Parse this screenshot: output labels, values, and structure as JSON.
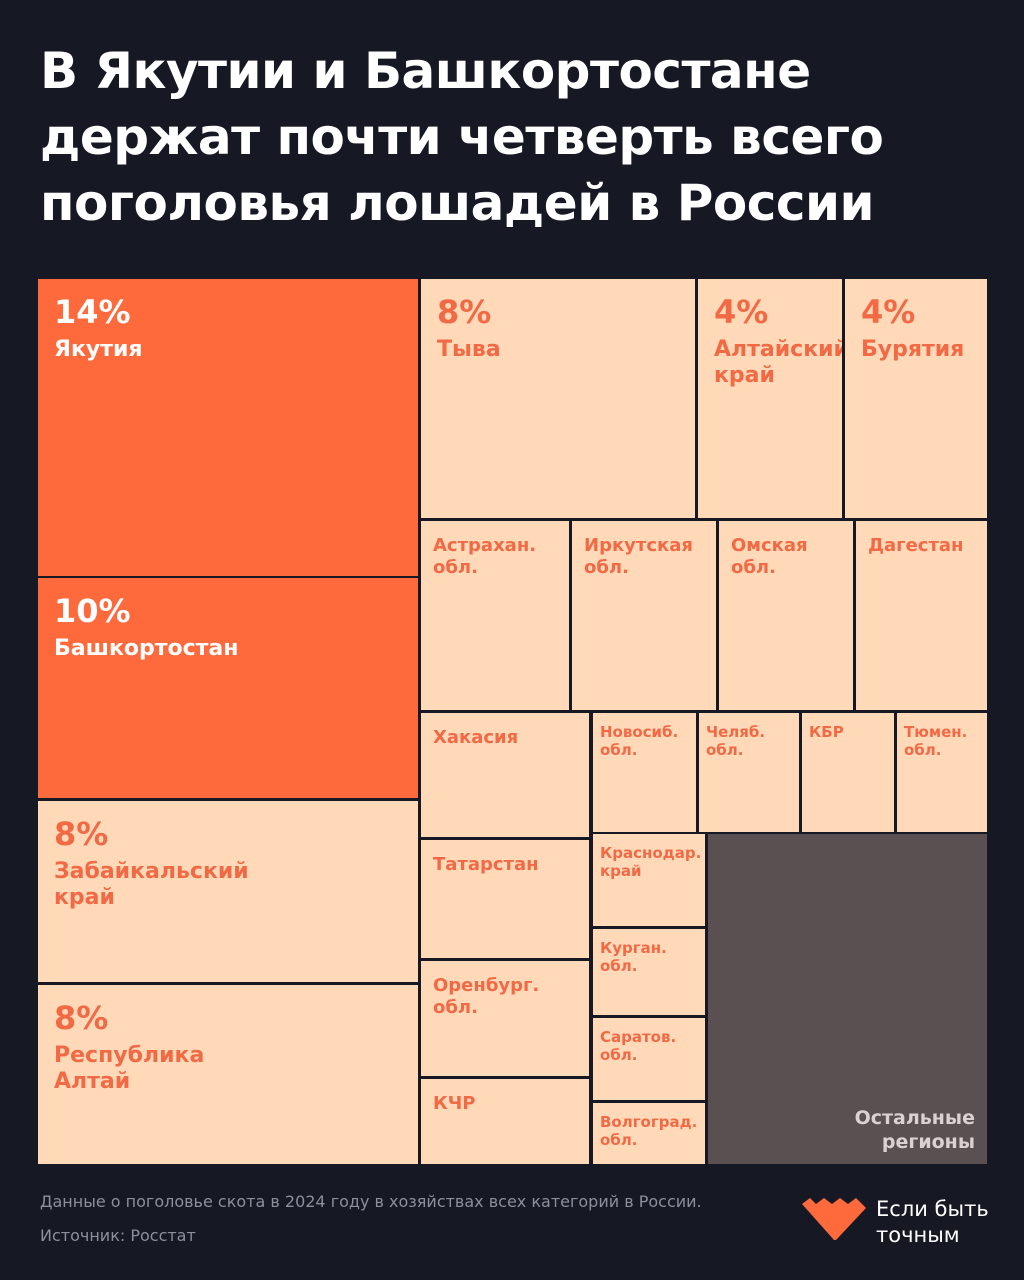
{
  "title": "В Якутии и Башкортостане\nдержат почти четверть всего\nпоголовья лошадей в России",
  "colors": {
    "background": "#161824",
    "highlight": "#ff6a3d",
    "default": "#ffd9b8",
    "label": "#f26a45",
    "rest": "#5b5051",
    "rest_label": "#d9d2d0"
  },
  "chart_data": {
    "type": "treemap",
    "title": "В Якутии и Башкортостане держат почти четверть всего поголовья лошадей в России",
    "regions": [
      {
        "name": "Якутия",
        "value_label": "14%",
        "value": 14,
        "highlight": true
      },
      {
        "name": "Башкортостан",
        "value_label": "10%",
        "value": 10,
        "highlight": true
      },
      {
        "name": "Забайкальский\nкрай",
        "value_label": "8%",
        "value": 8
      },
      {
        "name": "Республика\nАлтай",
        "value_label": "8%",
        "value": 8
      },
      {
        "name": "Тыва",
        "value_label": "8%",
        "value": 8
      },
      {
        "name": "Алтайский\nкрай",
        "value_label": "4%",
        "value": 4
      },
      {
        "name": "Бурятия",
        "value_label": "4%",
        "value": 4
      },
      {
        "name": "Астрахан.\nобл."
      },
      {
        "name": "Иркутская\nобл."
      },
      {
        "name": "Омская\nобл."
      },
      {
        "name": "Дагестан"
      },
      {
        "name": "Хакасия"
      },
      {
        "name": "Татарстан"
      },
      {
        "name": "Оренбург.\nобл."
      },
      {
        "name": "КЧР"
      },
      {
        "name": "Новосиб.\nобл."
      },
      {
        "name": "Челяб.\nобл."
      },
      {
        "name": "КБР"
      },
      {
        "name": "Тюмен.\nобл."
      },
      {
        "name": "Краснодар.\nкрай"
      },
      {
        "name": "Курган.\nобл."
      },
      {
        "name": "Саратов.\nобл."
      },
      {
        "name": "Волгоград.\nобл."
      },
      {
        "name": "Остальные\nрегионы",
        "rest": true
      }
    ]
  },
  "footer": {
    "note": "Данные о поголовье скота в 2024 году в хозяйствах всех категорий в России.",
    "source": "Источник: Росстат"
  },
  "logo": {
    "text": "Если быть\nточным",
    "icon": "heart-pixel-logo"
  }
}
